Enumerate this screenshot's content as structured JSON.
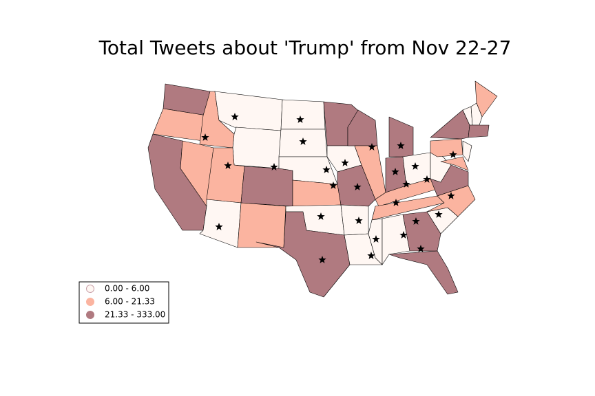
{
  "title": "Total Tweets about 'Trump' from Nov 22-27",
  "legend": {
    "entries": [
      {
        "label": "0.00 - 6.00",
        "color": "#fff7f3"
      },
      {
        "label": "6.00 - 21.33",
        "color": "#fbb4a0"
      },
      {
        "label": "21.33 - 333.00",
        "color": "#b07a80"
      }
    ]
  }
}
